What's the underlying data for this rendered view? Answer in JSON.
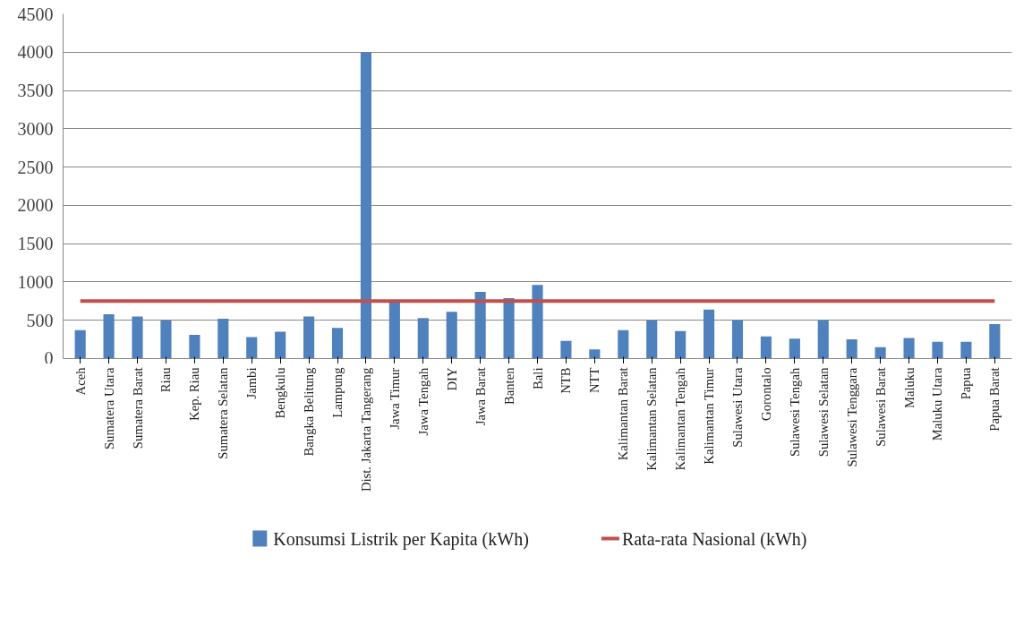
{
  "chart_data": {
    "type": "bar",
    "categories": [
      "Aceh",
      "Sumatera Utara",
      "Sumatera Barat",
      "Riau",
      "Kep. Riau",
      "Sumatera Selatan",
      "Jambi",
      "Bengkulu",
      "Bangka Belitung",
      "Lampung",
      "Dist. Jakarta Tangerang",
      "Jawa Timur",
      "Jawa Tengah",
      "DIY",
      "Jawa Barat",
      "Banten",
      "Bali",
      "NTB",
      "NTT",
      "Kalimantan Barat",
      "Kalimantan Selatan",
      "Kalimantan Tengah",
      "Kalimantan Timur",
      "Sulawesi Utara",
      "Gorontalo",
      "Sulawesi Tengah",
      "Sulawesi Selatan",
      "Sulawesi Tenggara",
      "Sulawesi Barat",
      "Maluku",
      "Maluku Utara",
      "Papua",
      "Papua Barat"
    ],
    "series": [
      {
        "name": "Konsumsi Listrik per Kapita (kWh)",
        "color": "#4f81bd",
        "values": [
          370,
          580,
          550,
          500,
          310,
          520,
          280,
          350,
          550,
          400,
          4000,
          730,
          530,
          610,
          870,
          790,
          960,
          230,
          120,
          370,
          500,
          360,
          640,
          500,
          290,
          260,
          500,
          250,
          150,
          270,
          220,
          220,
          450
        ]
      },
      {
        "name": "Rata-rata Nasional (kWh)",
        "type": "line",
        "color": "#c0504d",
        "values": [
          750,
          750,
          750,
          750,
          750,
          750,
          750,
          750,
          750,
          750,
          750,
          750,
          750,
          750,
          750,
          750,
          750,
          750,
          750,
          750,
          750,
          750,
          750,
          750,
          750,
          750,
          750,
          750,
          750,
          750,
          750,
          750,
          750
        ]
      }
    ],
    "ylim": [
      0,
      4500
    ],
    "yticks": [
      0,
      500,
      1000,
      1500,
      2000,
      2500,
      3000,
      3500,
      4000,
      4500
    ],
    "grid": "y",
    "legend": "bottom"
  }
}
